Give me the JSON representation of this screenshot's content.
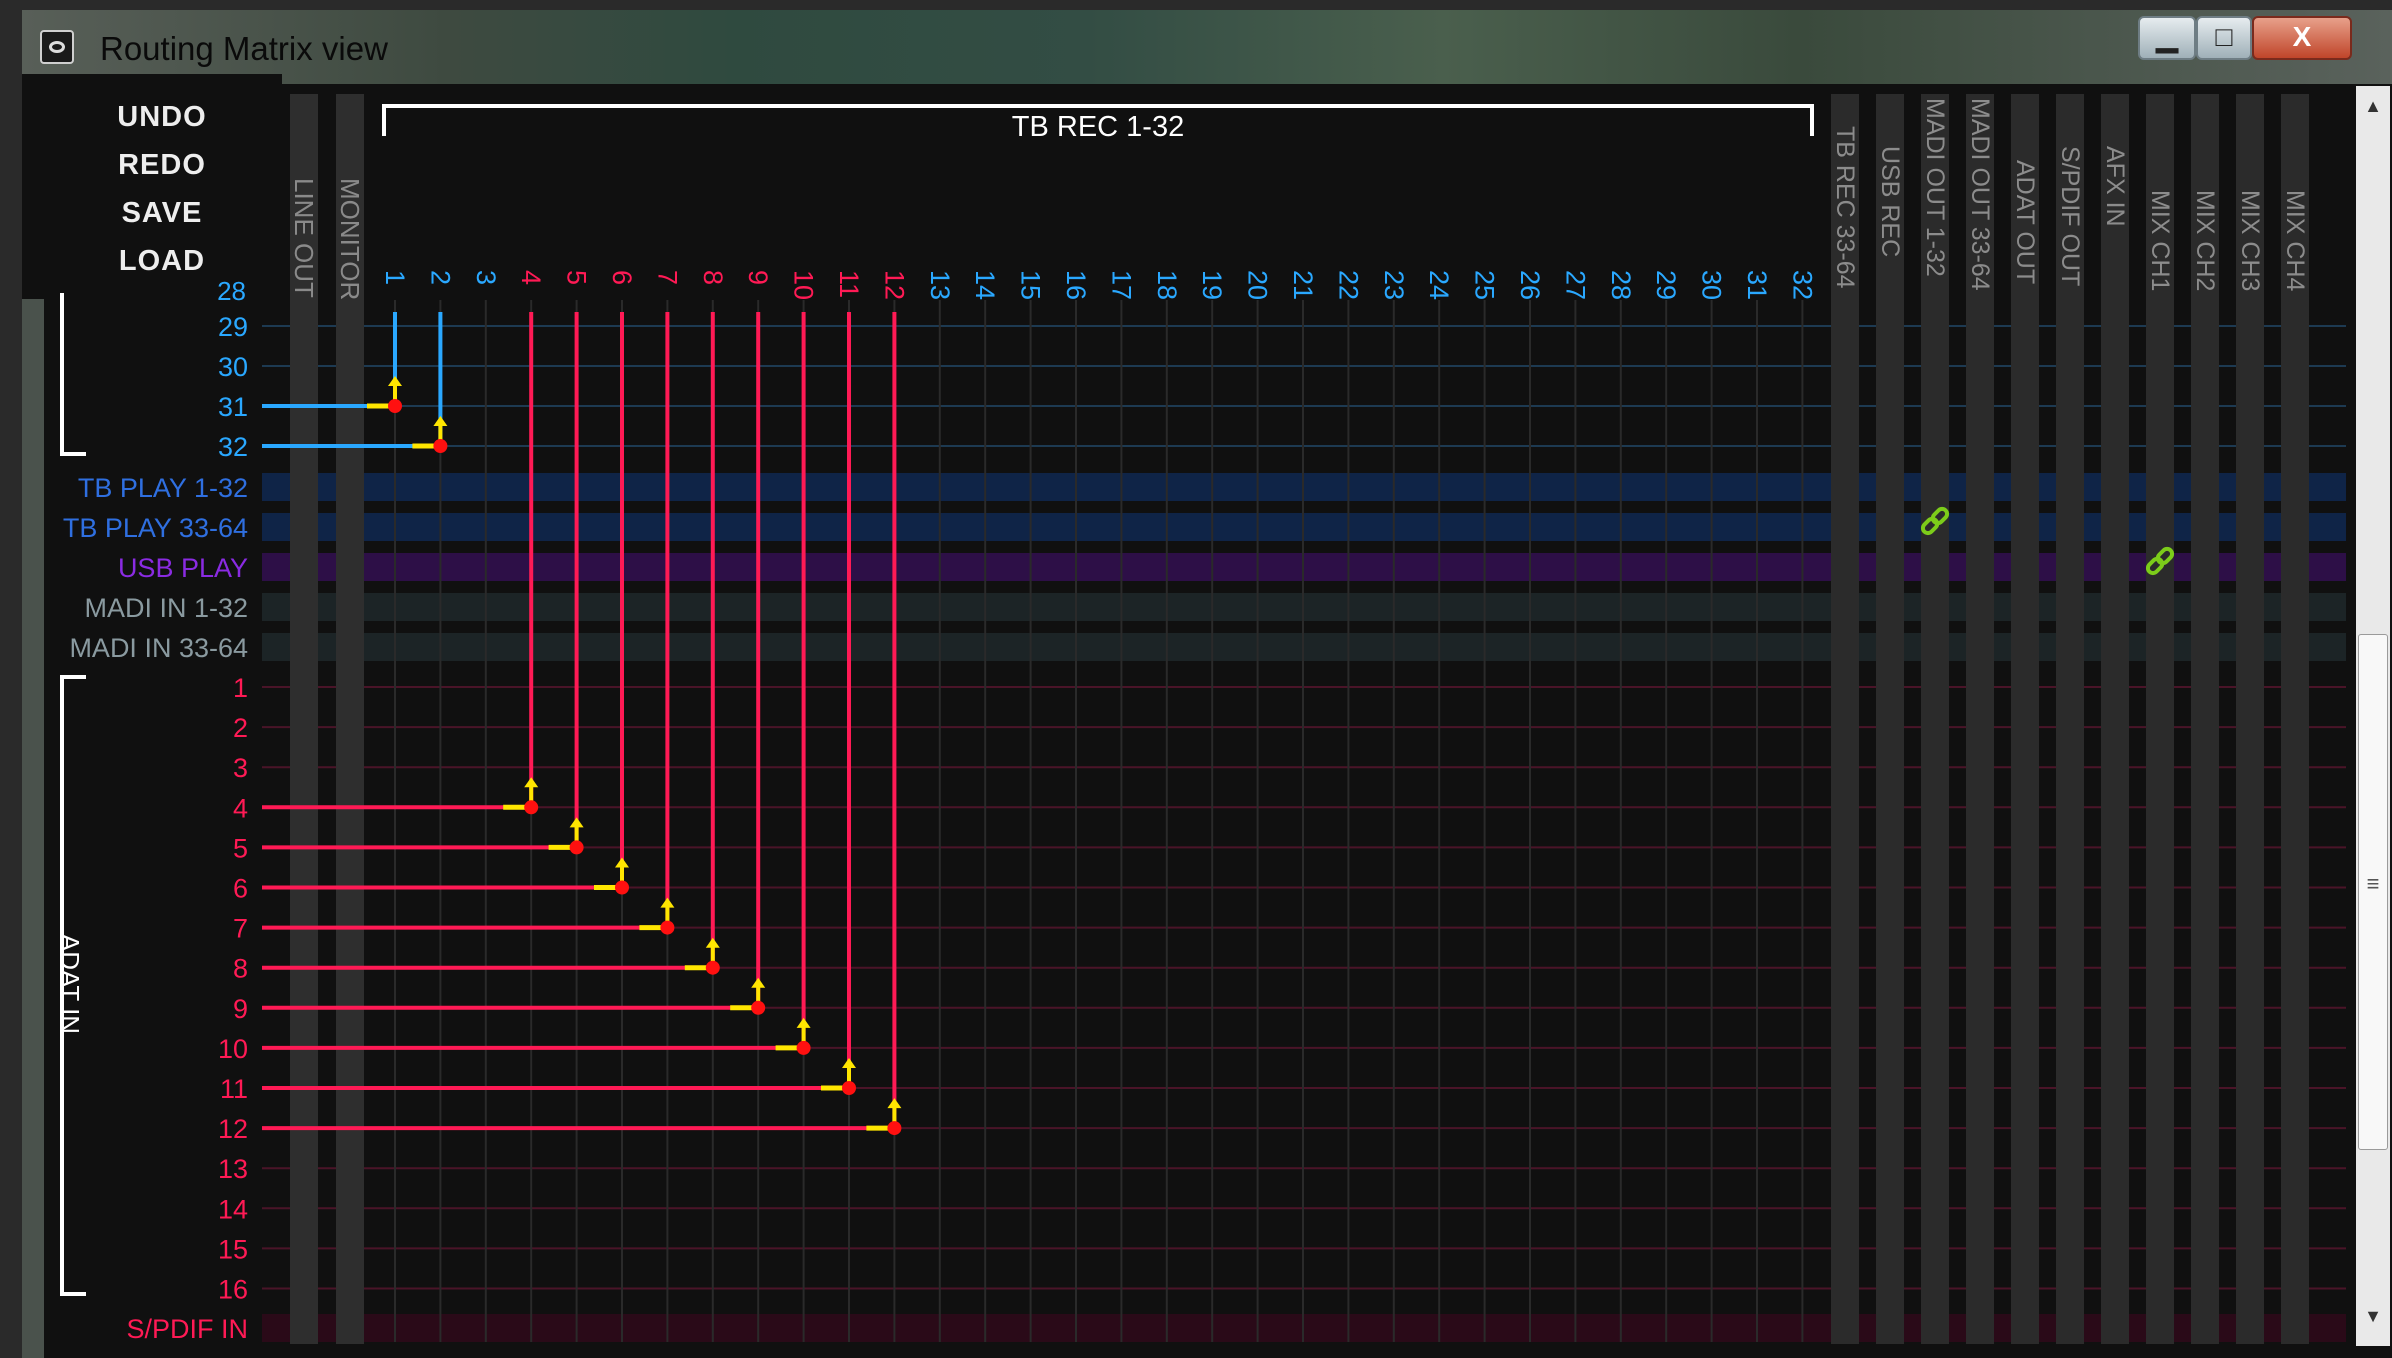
{
  "window": {
    "title": "Routing Matrix view",
    "controls": {
      "minimize": "▁",
      "maximize": "□",
      "close": "X"
    }
  },
  "menu": {
    "undo": "UNDO",
    "redo": "REDO",
    "save": "SAVE",
    "load": "LOAD"
  },
  "column_header": {
    "group_label": "TB REC 1-32",
    "left_columns": [
      "LINE OUT",
      "MONITOR"
    ],
    "tb_rec_channels": [
      "1",
      "2",
      "3",
      "4",
      "5",
      "6",
      "7",
      "8",
      "9",
      "10",
      "11",
      "12",
      "13",
      "14",
      "15",
      "16",
      "17",
      "18",
      "19",
      "20",
      "21",
      "22",
      "23",
      "24",
      "25",
      "26",
      "27",
      "28",
      "29",
      "30",
      "31",
      "32"
    ],
    "right_columns": [
      "TB REC 33-64",
      "USB REC",
      "MADI OUT 1-32",
      "MADI OUT 33-64",
      "ADAT OUT",
      "S/PDIF OUT",
      "AFX IN",
      "MIX CH1",
      "MIX CH2",
      "MIX CH3",
      "MIX CH4"
    ],
    "partial_row_label": "28"
  },
  "rows": {
    "top_channels": [
      "29",
      "30",
      "31",
      "32"
    ],
    "groups": [
      "TB PLAY 1-32",
      "TB PLAY 33-64",
      "USB PLAY",
      "MADI IN 1-32",
      "MADI IN 33-64"
    ],
    "adat_label": "ADAT IN",
    "adat_channels": [
      "1",
      "2",
      "3",
      "4",
      "5",
      "6",
      "7",
      "8",
      "9",
      "10",
      "11",
      "12",
      "13",
      "14",
      "15",
      "16"
    ],
    "spdif_label": "S/PDIF IN"
  },
  "routes": [
    {
      "input": "31",
      "output": "1"
    },
    {
      "input": "32",
      "output": "2"
    },
    {
      "input": "ADAT IN 4",
      "output": "4"
    },
    {
      "input": "ADAT IN 5",
      "output": "5"
    },
    {
      "input": "ADAT IN 6",
      "output": "6"
    },
    {
      "input": "ADAT IN 7",
      "output": "7"
    },
    {
      "input": "ADAT IN 8",
      "output": "8"
    },
    {
      "input": "ADAT IN 9",
      "output": "9"
    },
    {
      "input": "ADAT IN 10",
      "output": "10"
    },
    {
      "input": "ADAT IN 11",
      "output": "11"
    },
    {
      "input": "ADAT IN 12",
      "output": "12"
    }
  ],
  "links": [
    {
      "row": "TB PLAY 33-64",
      "column": "MADI OUT 1-32"
    },
    {
      "row": "USB PLAY",
      "column": "MIX CH1"
    }
  ],
  "colors": {
    "tb_blue": "#2aa8ff",
    "group_blue": "#2f6fe0",
    "usb_purple": "#8a2be2",
    "madi_gray": "#8a9aa0",
    "adat_red": "#ff1a55",
    "route_node": "#ff1010",
    "arrow_yellow": "#ffe600",
    "link_green": "#7ccc1a"
  },
  "scrollbar": {
    "up": "▲",
    "down": "▼",
    "grip": "≡"
  }
}
